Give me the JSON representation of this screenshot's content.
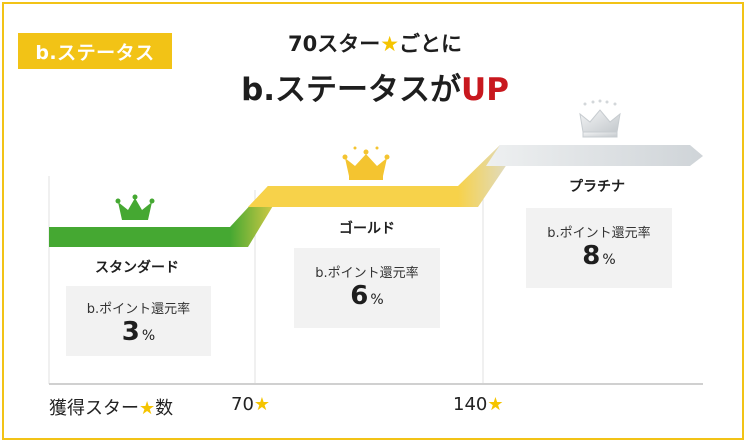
{
  "badge": "b.ステータス",
  "headline": {
    "line1_prefix": "70スター",
    "line1_star": "★",
    "line1_suffix": "ごとに",
    "line2_main": "b.ステータスが",
    "line2_up": "UP"
  },
  "tiers": [
    {
      "name": "スタンダード",
      "rate_label": "b.ポイント還元率",
      "rate_value": "3",
      "unit": "%"
    },
    {
      "name": "ゴールド",
      "rate_label": "b.ポイント還元率",
      "rate_value": "6",
      "unit": "%"
    },
    {
      "name": "プラチナ",
      "rate_label": "b.ポイント還元率",
      "rate_value": "8",
      "unit": "%"
    }
  ],
  "axis": {
    "label_prefix": "獲得スター",
    "label_star": "★",
    "label_suffix": "数",
    "tick1": "70",
    "tick2": "140",
    "tick_star": "★"
  },
  "colors": {
    "frame": "#f2c316",
    "standard": "#45a832",
    "gold": "#f7d24a",
    "platinum": "#d9dde0",
    "up": "#c8181e",
    "star": "#f5c400"
  },
  "icons": {
    "standard": "crown-icon",
    "gold": "crown-icon",
    "platinum": "crown-icon"
  }
}
